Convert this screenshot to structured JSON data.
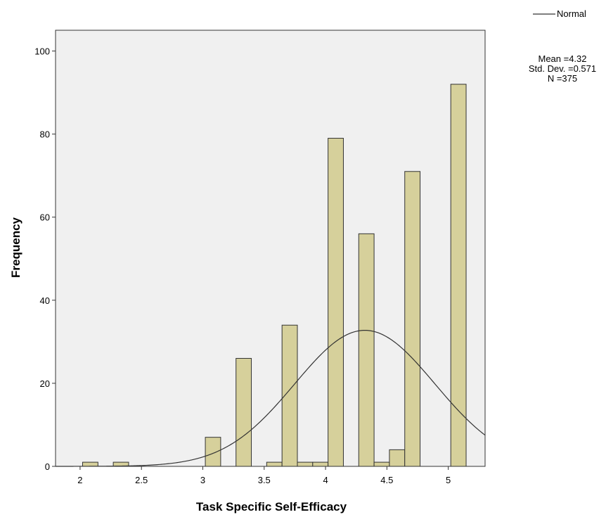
{
  "chart_data": {
    "type": "bar",
    "title": "",
    "xlabel": "Task Specific Self-Efficacy",
    "ylabel": "Frequency",
    "xlim": [
      1.8,
      5.3
    ],
    "ylim": [
      0,
      105
    ],
    "x_ticks": [
      "2",
      "2.5",
      "3",
      "3.5",
      "4",
      "4.5",
      "5"
    ],
    "y_ticks": [
      "0",
      "20",
      "40",
      "60",
      "80",
      "100"
    ],
    "bins": [
      {
        "x": 2.083,
        "value": 1
      },
      {
        "x": 2.333,
        "value": 1
      },
      {
        "x": 3.083,
        "value": 7
      },
      {
        "x": 3.333,
        "value": 26
      },
      {
        "x": 3.583,
        "value": 1
      },
      {
        "x": 3.708,
        "value": 34
      },
      {
        "x": 3.833,
        "value": 1
      },
      {
        "x": 3.958,
        "value": 1
      },
      {
        "x": 4.083,
        "value": 79
      },
      {
        "x": 4.333,
        "value": 56
      },
      {
        "x": 4.458,
        "value": 1
      },
      {
        "x": 4.583,
        "value": 4
      },
      {
        "x": 4.708,
        "value": 71
      },
      {
        "x": 5.083,
        "value": 92
      }
    ],
    "normal_curve": {
      "mean": 4.32,
      "std": 0.571,
      "n": 375
    },
    "stats_text": [
      "Mean =4.32",
      "Std. Dev. =0.571",
      "N =375"
    ],
    "legend": {
      "position": "top-right",
      "entries": [
        {
          "name": "Normal"
        }
      ]
    },
    "grid": false,
    "colors": {
      "bar_fill": "#d6d09b",
      "bar_stroke": "#333333",
      "plot_bg": "#f0f0f0",
      "curve": "#333333"
    }
  }
}
